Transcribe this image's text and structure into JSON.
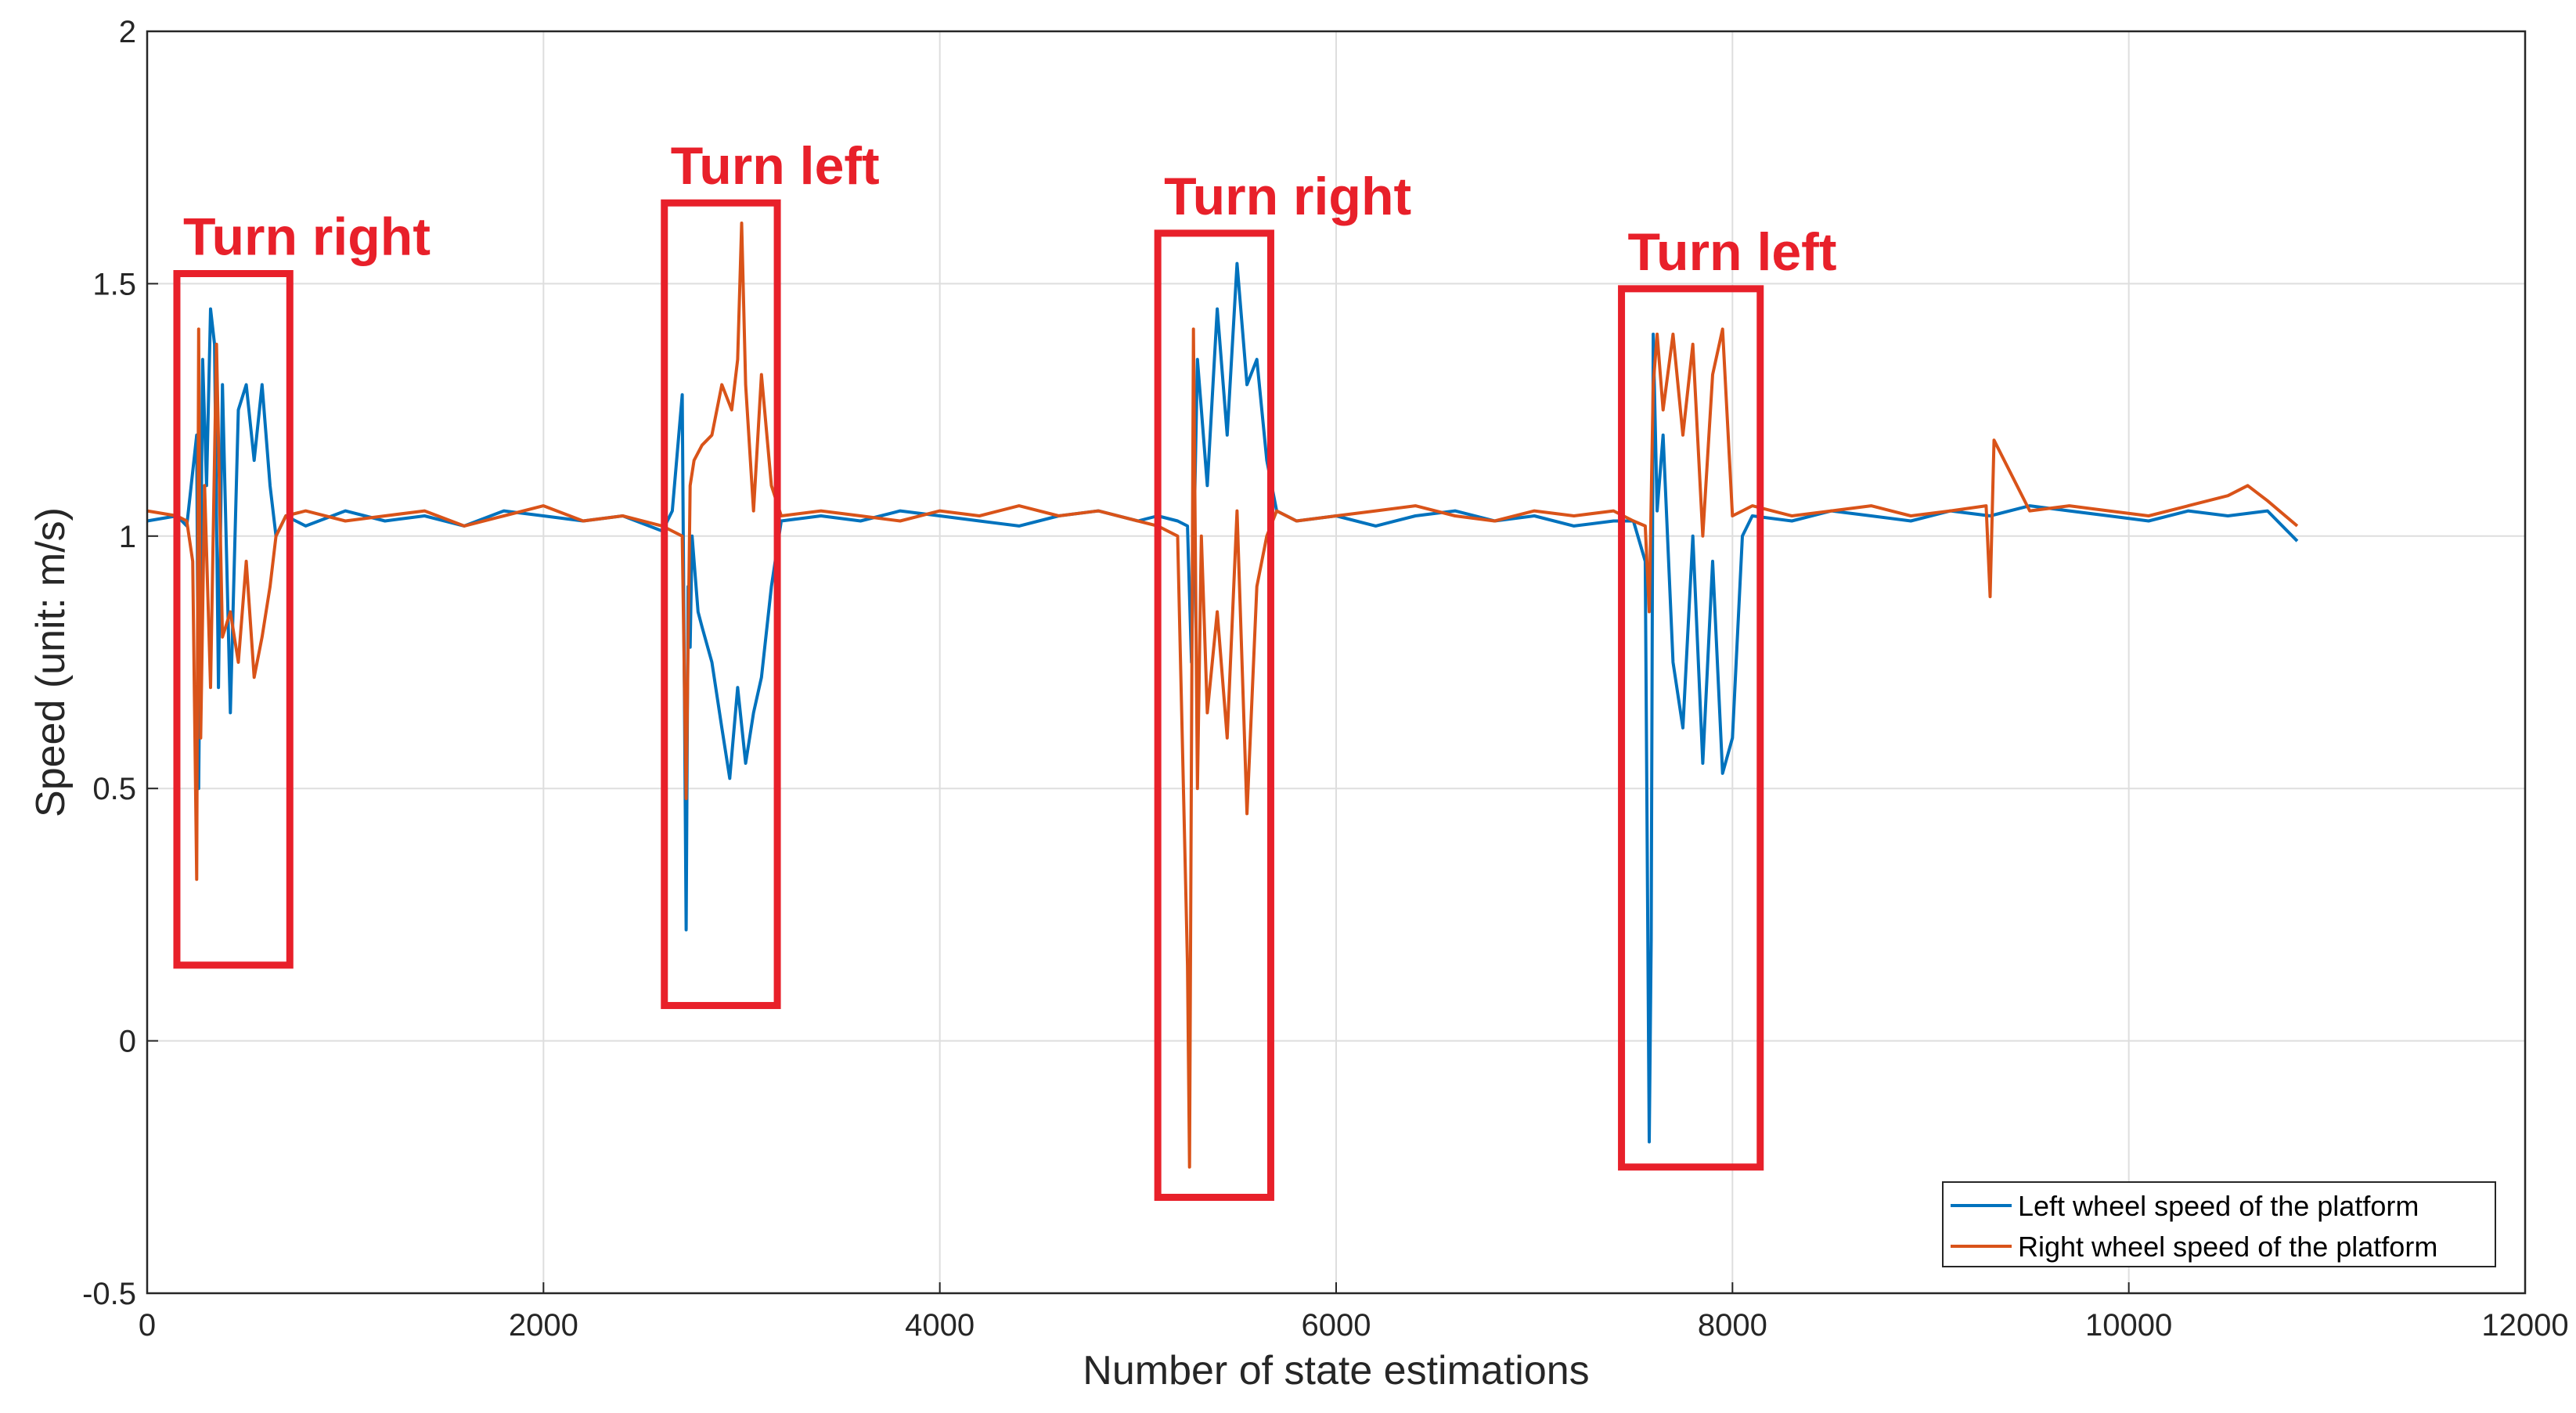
{
  "chart_data": {
    "type": "line",
    "title": "",
    "xlabel": "Number of state estimations",
    "ylabel": "Speed (unit: m/s)",
    "xlim": [
      0,
      12000
    ],
    "ylim": [
      -0.5,
      2
    ],
    "xticks": [
      0,
      2000,
      4000,
      6000,
      8000,
      10000,
      12000
    ],
    "xtick_labels": [
      "0",
      "2000",
      "4000",
      "6000",
      "8000",
      "10000",
      "12000"
    ],
    "yticks": [
      -0.5,
      0,
      0.5,
      1,
      1.5,
      2
    ],
    "ytick_labels": [
      "-0.5",
      "0",
      "0.5",
      "1",
      "1.5",
      "2"
    ],
    "grid": true,
    "legend_position": "bottom-right",
    "series": [
      {
        "name": "Left wheel speed of the platform",
        "color": "#0072bd",
        "x": [
          0,
          150,
          200,
          250,
          260,
          280,
          300,
          320,
          340,
          360,
          380,
          420,
          460,
          500,
          540,
          580,
          620,
          650,
          700,
          800,
          1000,
          1200,
          1400,
          1600,
          1800,
          2000,
          2200,
          2400,
          2600,
          2650,
          2700,
          2720,
          2730,
          2740,
          2750,
          2780,
          2800,
          2850,
          2900,
          2940,
          2980,
          3020,
          3060,
          3100,
          3150,
          3200,
          3400,
          3600,
          3800,
          4000,
          4200,
          4400,
          4600,
          4800,
          5000,
          5100,
          5200,
          5250,
          5270,
          5300,
          5350,
          5400,
          5450,
          5500,
          5550,
          5600,
          5650,
          5700,
          5800,
          6000,
          6200,
          6400,
          6600,
          6800,
          7000,
          7200,
          7400,
          7500,
          7560,
          7580,
          7590,
          7600,
          7620,
          7650,
          7700,
          7750,
          7800,
          7850,
          7900,
          7950,
          8000,
          8050,
          8100,
          8300,
          8500,
          8700,
          8900,
          9100,
          9300,
          9500,
          9700,
          9900,
          10100,
          10300,
          10500,
          10700,
          10850
        ],
        "y": [
          1.03,
          1.04,
          1.02,
          1.2,
          0.5,
          1.35,
          1.1,
          1.45,
          1.38,
          0.7,
          1.3,
          0.65,
          1.25,
          1.3,
          1.15,
          1.3,
          1.1,
          1.0,
          1.04,
          1.02,
          1.05,
          1.03,
          1.04,
          1.02,
          1.05,
          1.04,
          1.03,
          1.04,
          1.01,
          1.05,
          1.28,
          0.22,
          0.9,
          0.78,
          1.0,
          0.85,
          0.82,
          0.75,
          0.62,
          0.52,
          0.7,
          0.55,
          0.65,
          0.72,
          0.9,
          1.03,
          1.04,
          1.03,
          1.05,
          1.04,
          1.03,
          1.02,
          1.04,
          1.05,
          1.03,
          1.04,
          1.03,
          1.02,
          0.75,
          1.35,
          1.1,
          1.45,
          1.2,
          1.54,
          1.3,
          1.35,
          1.15,
          1.05,
          1.03,
          1.04,
          1.02,
          1.04,
          1.05,
          1.03,
          1.04,
          1.02,
          1.03,
          1.03,
          0.95,
          -0.2,
          0.2,
          1.4,
          1.05,
          1.2,
          0.75,
          0.62,
          1.0,
          0.55,
          0.95,
          0.53,
          0.6,
          1.0,
          1.04,
          1.03,
          1.05,
          1.04,
          1.03,
          1.05,
          1.04,
          1.06,
          1.05,
          1.04,
          1.03,
          1.05,
          1.04,
          1.05,
          0.99
        ]
      },
      {
        "name": "Right wheel speed of the platform",
        "color": "#d95319",
        "x": [
          0,
          150,
          200,
          230,
          250,
          260,
          270,
          290,
          320,
          350,
          380,
          420,
          460,
          500,
          540,
          580,
          620,
          650,
          700,
          800,
          1000,
          1200,
          1400,
          1600,
          1800,
          2000,
          2200,
          2400,
          2600,
          2650,
          2700,
          2720,
          2740,
          2760,
          2800,
          2850,
          2900,
          2950,
          2980,
          3000,
          3020,
          3060,
          3100,
          3150,
          3200,
          3400,
          3600,
          3800,
          4000,
          4200,
          4400,
          4600,
          4800,
          5000,
          5100,
          5200,
          5250,
          5260,
          5280,
          5300,
          5320,
          5350,
          5400,
          5450,
          5500,
          5550,
          5600,
          5650,
          5700,
          5800,
          6000,
          6200,
          6400,
          6600,
          6800,
          7000,
          7200,
          7400,
          7500,
          7560,
          7580,
          7600,
          7620,
          7650,
          7700,
          7750,
          7800,
          7850,
          7900,
          7950,
          8000,
          8050,
          8100,
          8300,
          8500,
          8700,
          8900,
          9100,
          9280,
          9300,
          9320,
          9500,
          9700,
          9900,
          10100,
          10300,
          10500,
          10600,
          10700,
          10850
        ],
        "y": [
          1.05,
          1.04,
          1.03,
          0.95,
          0.32,
          1.41,
          0.6,
          1.1,
          0.7,
          1.38,
          0.8,
          0.85,
          0.75,
          0.95,
          0.72,
          0.8,
          0.9,
          1.0,
          1.04,
          1.05,
          1.03,
          1.04,
          1.05,
          1.02,
          1.04,
          1.06,
          1.03,
          1.04,
          1.02,
          1.01,
          1.0,
          0.48,
          1.1,
          1.15,
          1.18,
          1.2,
          1.3,
          1.25,
          1.35,
          1.62,
          1.3,
          1.05,
          1.32,
          1.1,
          1.04,
          1.05,
          1.04,
          1.03,
          1.05,
          1.04,
          1.06,
          1.04,
          1.05,
          1.03,
          1.02,
          1.0,
          0.15,
          -0.25,
          1.41,
          0.5,
          1.0,
          0.65,
          0.85,
          0.6,
          1.05,
          0.45,
          0.9,
          1.0,
          1.05,
          1.03,
          1.04,
          1.05,
          1.06,
          1.04,
          1.03,
          1.05,
          1.04,
          1.05,
          1.03,
          1.02,
          0.85,
          1.3,
          1.4,
          1.25,
          1.4,
          1.2,
          1.38,
          1.0,
          1.32,
          1.41,
          1.04,
          1.05,
          1.06,
          1.04,
          1.05,
          1.06,
          1.04,
          1.05,
          1.06,
          0.88,
          1.19,
          1.05,
          1.06,
          1.05,
          1.04,
          1.06,
          1.08,
          1.1,
          1.07,
          1.02
        ]
      }
    ],
    "annotations": [
      {
        "text": "Turn right",
        "x_range": [
          150,
          720
        ],
        "y_range": [
          0.15,
          1.52
        ]
      },
      {
        "text": "Turn left",
        "x_range": [
          2610,
          3180
        ],
        "y_range": [
          0.07,
          1.66
        ]
      },
      {
        "text": "Turn right",
        "x_range": [
          5100,
          5670
        ],
        "y_range": [
          -0.31,
          1.6
        ]
      },
      {
        "text": "Turn left",
        "x_range": [
          7440,
          8140
        ],
        "y_range": [
          -0.25,
          1.49
        ]
      }
    ],
    "annotation_color": "#e8202a"
  }
}
